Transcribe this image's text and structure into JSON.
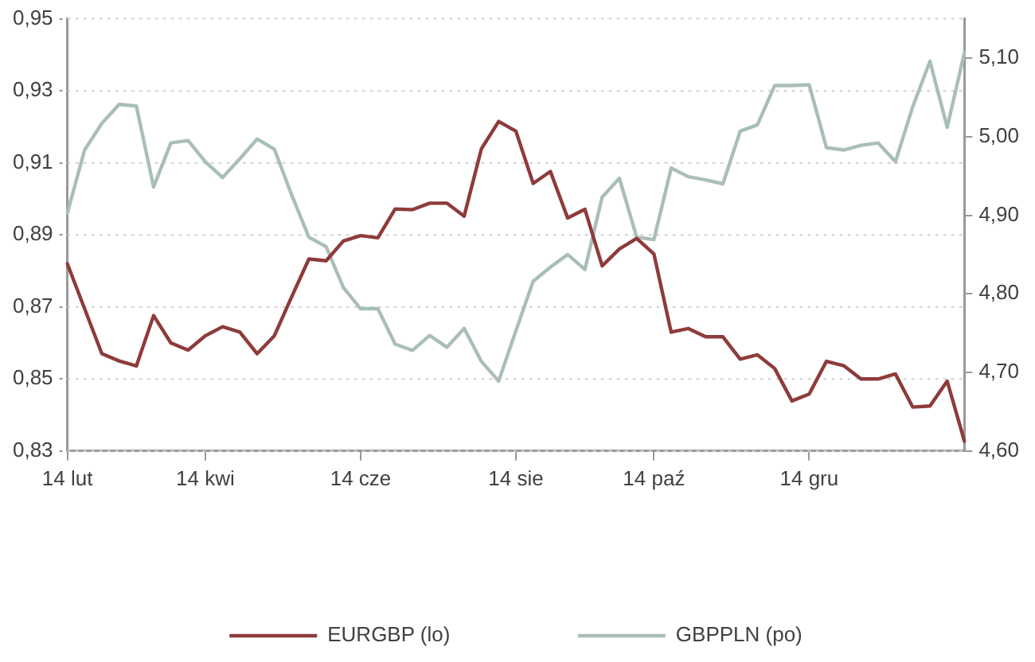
{
  "chart_data": {
    "type": "line",
    "categories": [
      "14 lut",
      null,
      null,
      null,
      null,
      null,
      null,
      null,
      "14 kwi",
      null,
      null,
      null,
      null,
      null,
      null,
      null,
      null,
      "14 cze",
      null,
      null,
      null,
      null,
      null,
      null,
      null,
      null,
      "14 sie",
      null,
      null,
      null,
      null,
      null,
      null,
      null,
      "14 paź",
      null,
      null,
      null,
      null,
      null,
      null,
      null,
      null,
      "14 gru",
      null,
      null,
      null,
      null,
      null,
      null,
      null,
      null,
      null
    ],
    "series": [
      {
        "name": "EURGBP (lo)",
        "color": "#8e3b3b",
        "values": [
          0.882,
          0.8695,
          0.857,
          0.855,
          0.8536,
          0.8676,
          0.86,
          0.858,
          0.862,
          0.8645,
          0.863,
          0.857,
          0.862,
          0.8728,
          0.8833,
          0.8828,
          0.8883,
          0.8898,
          0.8892,
          0.8972,
          0.897,
          0.8988,
          0.8988,
          0.8952,
          0.9139,
          0.9215,
          0.9188,
          0.9043,
          0.9076,
          0.8947,
          0.8971,
          0.8814,
          0.8861,
          0.889,
          0.8847,
          0.863,
          0.864,
          0.8617,
          0.8617,
          0.8555,
          0.8567,
          0.8529,
          0.8439,
          0.8458,
          0.8549,
          0.8537,
          0.85,
          0.85,
          0.8514,
          0.8422,
          0.8425,
          0.8494,
          0.8327
        ]
      },
      {
        "name": "GBPPLN (po)",
        "color": "#a9bfb5",
        "axis": "y2",
        "values": [
          4.903,
          4.983,
          5.017,
          5.041,
          5.039,
          4.936,
          4.992,
          4.995,
          4.968,
          4.948,
          4.972,
          4.997,
          4.984,
          4.926,
          4.872,
          4.86,
          4.808,
          4.781,
          4.781,
          4.736,
          4.728,
          4.747,
          4.732,
          4.756,
          4.714,
          4.689,
          4.753,
          4.816,
          4.834,
          4.85,
          4.831,
          4.923,
          4.947,
          4.872,
          4.869,
          4.96,
          4.949,
          4.945,
          4.94,
          5.007,
          5.015,
          5.065,
          5.065,
          5.066,
          4.986,
          4.983,
          4.989,
          4.992,
          4.968,
          5.038,
          5.096,
          5.012,
          5.107
        ]
      }
    ],
    "ylim": [
      0.83,
      0.95
    ],
    "yticks": [
      {
        "value": 0.83,
        "label": "0,83"
      },
      {
        "value": 0.85,
        "label": "0,85"
      },
      {
        "value": 0.87,
        "label": "0,87"
      },
      {
        "value": 0.89,
        "label": "0,89"
      },
      {
        "value": 0.91,
        "label": "0,91"
      },
      {
        "value": 0.93,
        "label": "0,93"
      },
      {
        "value": 0.95,
        "label": "0,95"
      }
    ],
    "y2lim": [
      4.6,
      5.15
    ],
    "y2ticks": [
      {
        "value": 4.6,
        "label": "4,60"
      },
      {
        "value": 4.7,
        "label": "4,70"
      },
      {
        "value": 4.8,
        "label": "4,80"
      },
      {
        "value": 4.9,
        "label": "4,90"
      },
      {
        "value": 5.0,
        "label": "5,00"
      },
      {
        "value": 5.1,
        "label": "5,10"
      }
    ],
    "grid": "y",
    "legend": "bottom",
    "marker": "none",
    "line_style": "solid"
  }
}
